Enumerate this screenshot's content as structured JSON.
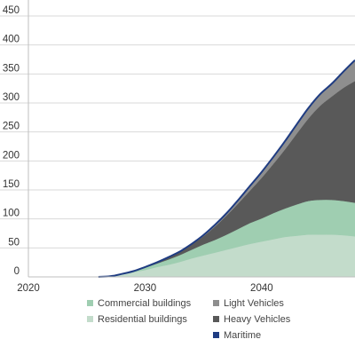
{
  "chart_data": {
    "type": "area",
    "title": "",
    "xlabel": "",
    "ylabel": "",
    "xlim": [
      2020,
      2048
    ],
    "ylim": [
      0,
      450
    ],
    "x_ticks": [
      "2020",
      "2030",
      "2040"
    ],
    "y_ticks": [
      "0",
      "50",
      "100",
      "150",
      "200",
      "250",
      "300",
      "350",
      "400",
      "450"
    ],
    "grid": "horizontal",
    "legend_position": "bottom",
    "stacked": true,
    "x": [
      2026,
      2027,
      2028,
      2029,
      2030,
      2031,
      2032,
      2033,
      2034,
      2035,
      2036,
      2037,
      2038,
      2039,
      2040,
      2041,
      2042,
      2043,
      2044,
      2045,
      2046,
      2047,
      2048
    ],
    "series": [
      {
        "name": "Residential buildings",
        "color": "#c3dccb",
        "values": [
          0,
          1,
          4,
          8,
          12,
          17,
          21,
          26,
          32,
          37,
          42,
          47,
          52,
          57,
          61,
          65,
          69,
          71,
          73,
          73,
          73,
          72,
          70
        ]
      },
      {
        "name": "Commercial buildings",
        "color": "#9fceb1",
        "values": [
          0,
          0,
          1,
          2,
          4,
          6,
          9,
          12,
          15,
          19,
          22,
          26,
          31,
          36,
          40,
          45,
          49,
          54,
          58,
          60,
          60,
          59,
          58
        ]
      },
      {
        "name": "Heavy Vehicles",
        "color": "#595959",
        "values": [
          0,
          0,
          0,
          0,
          1,
          2,
          4,
          6,
          9,
          14,
          23,
          33,
          44,
          56,
          70,
          85,
          102,
          122,
          142,
          162,
          178,
          195,
          210
        ]
      },
      {
        "name": "Light Vehicles",
        "color": "#8e8e8e",
        "values": [
          0,
          0,
          0,
          0,
          0,
          0,
          0,
          0,
          1,
          2,
          3,
          4,
          5,
          7,
          9,
          11,
          13,
          15,
          17,
          19,
          21,
          27,
          35
        ]
      },
      {
        "name": "Maritime",
        "color": "#1f3c82",
        "values": [
          0,
          0,
          0,
          0,
          0,
          0,
          0,
          0,
          0,
          0,
          0,
          0,
          1,
          1,
          1,
          1,
          1,
          1,
          1,
          1,
          1,
          1,
          1
        ]
      }
    ],
    "legend": [
      {
        "name": "Commercial buildings",
        "color": "#9fceb1"
      },
      {
        "name": "Residential buildings",
        "color": "#c3dccb"
      },
      {
        "name": "Light Vehicles",
        "color": "#8e8e8e"
      },
      {
        "name": "Heavy Vehicles",
        "color": "#595959"
      },
      {
        "name": "Maritime",
        "color": "#1f3c82"
      }
    ]
  }
}
